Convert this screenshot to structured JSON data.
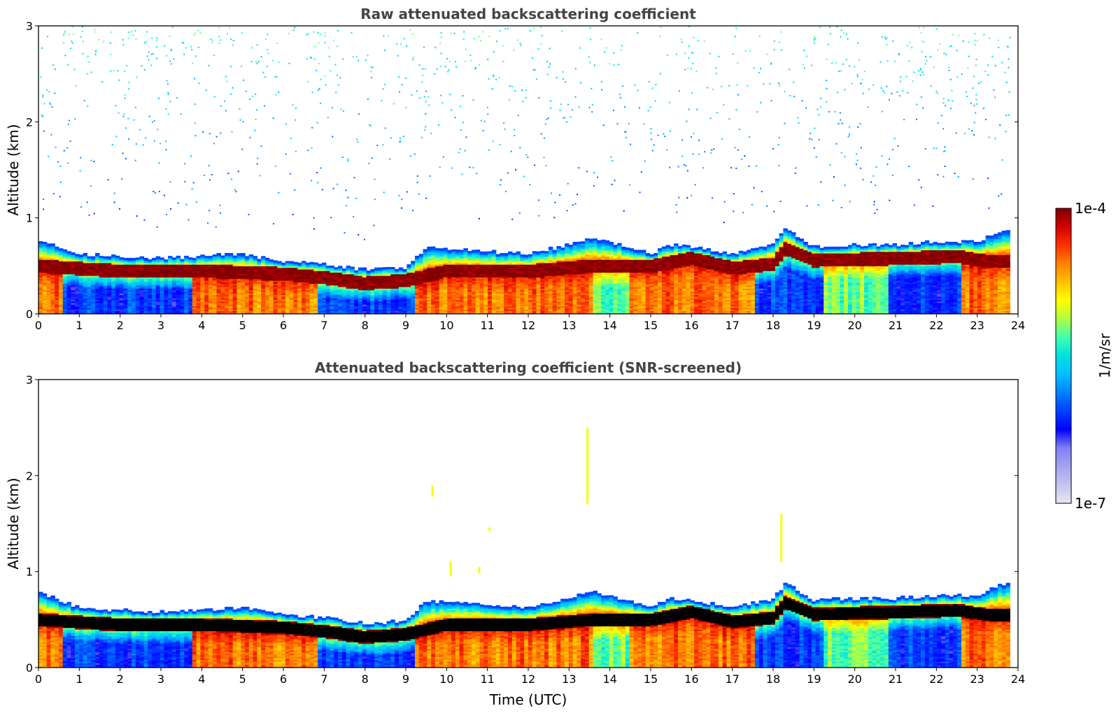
{
  "chart_data": [
    {
      "type": "heatmap",
      "title": "Raw attenuated backscattering coefficient",
      "xlabel": "",
      "ylabel": "Altitude (km)",
      "xlim": [
        0,
        24
      ],
      "ylim": [
        0,
        3
      ],
      "x_ticks": [
        "0",
        "1",
        "2",
        "3",
        "4",
        "5",
        "6",
        "7",
        "8",
        "9",
        "10",
        "11",
        "12",
        "13",
        "14",
        "15",
        "16",
        "17",
        "18",
        "19",
        "20",
        "21",
        "22",
        "23",
        "24"
      ],
      "y_ticks": [
        "0",
        "1",
        "2",
        "3"
      ],
      "layer_top_km": [
        [
          0,
          0.78
        ],
        [
          1,
          0.62
        ],
        [
          2,
          0.6
        ],
        [
          3,
          0.58
        ],
        [
          4,
          0.6
        ],
        [
          5,
          0.62
        ],
        [
          6,
          0.55
        ],
        [
          7,
          0.52
        ],
        [
          8,
          0.46
        ],
        [
          9,
          0.48
        ],
        [
          9.5,
          0.7
        ],
        [
          10,
          0.68
        ],
        [
          11,
          0.65
        ],
        [
          12,
          0.62
        ],
        [
          13,
          0.72
        ],
        [
          13.5,
          0.8
        ],
        [
          14,
          0.75
        ],
        [
          15,
          0.62
        ],
        [
          15.5,
          0.72
        ],
        [
          16,
          0.7
        ],
        [
          17,
          0.62
        ],
        [
          18,
          0.72
        ],
        [
          18.3,
          0.88
        ],
        [
          19,
          0.7
        ],
        [
          20,
          0.72
        ],
        [
          21,
          0.72
        ],
        [
          22,
          0.75
        ],
        [
          23,
          0.75
        ],
        [
          23.8,
          0.9
        ]
      ],
      "max_band_center_km": [
        [
          0,
          0.5
        ],
        [
          2,
          0.45
        ],
        [
          4,
          0.45
        ],
        [
          6,
          0.42
        ],
        [
          7,
          0.38
        ],
        [
          8,
          0.32
        ],
        [
          9,
          0.35
        ],
        [
          10,
          0.45
        ],
        [
          12,
          0.45
        ],
        [
          13.5,
          0.5
        ],
        [
          15,
          0.5
        ],
        [
          16,
          0.58
        ],
        [
          17,
          0.48
        ],
        [
          18,
          0.52
        ],
        [
          18.3,
          0.68
        ],
        [
          19,
          0.56
        ],
        [
          21,
          0.58
        ],
        [
          22.5,
          0.6
        ],
        [
          23.3,
          0.55
        ]
      ],
      "near_surface_signal": [
        {
          "from": 0,
          "to": 0.6,
          "level": "high"
        },
        {
          "from": 0.6,
          "to": 3.8,
          "level": "low"
        },
        {
          "from": 3.8,
          "to": 6.8,
          "level": "high"
        },
        {
          "from": 6.8,
          "to": 9.2,
          "level": "low"
        },
        {
          "from": 9.2,
          "to": 13.6,
          "level": "high"
        },
        {
          "from": 13.6,
          "to": 14.5,
          "level": "medium"
        },
        {
          "from": 14.5,
          "to": 17.6,
          "level": "high"
        },
        {
          "from": 17.6,
          "to": 19.2,
          "level": "low"
        },
        {
          "from": 19.2,
          "to": 20.8,
          "level": "medium"
        },
        {
          "from": 20.8,
          "to": 22.6,
          "level": "low"
        },
        {
          "from": 22.6,
          "to": 23.8,
          "level": "high"
        }
      ],
      "noise_above_layer": true,
      "data_end_hour": 23.8
    },
    {
      "type": "heatmap",
      "title": "Attenuated backscattering coefficient (SNR-screened)",
      "xlabel": "Time (UTC)",
      "ylabel": "Altitude (km)",
      "xlim": [
        0,
        24
      ],
      "ylim": [
        0,
        3
      ],
      "x_ticks": [
        "0",
        "1",
        "2",
        "3",
        "4",
        "5",
        "6",
        "7",
        "8",
        "9",
        "10",
        "11",
        "12",
        "13",
        "14",
        "15",
        "16",
        "17",
        "18",
        "19",
        "20",
        "21",
        "22",
        "23",
        "24"
      ],
      "y_ticks": [
        "0",
        "1",
        "2",
        "3"
      ],
      "noise_above_layer": false,
      "saturated_color": "#000000",
      "isolated_returns": [
        {
          "t": 9.65,
          "z_min": 1.78,
          "z_max": 1.9
        },
        {
          "t": 10.1,
          "z_min": 0.95,
          "z_max": 1.1
        },
        {
          "t": 10.8,
          "z_min": 0.98,
          "z_max": 1.05
        },
        {
          "t": 11.05,
          "z_min": 1.42,
          "z_max": 1.46
        },
        {
          "t": 13.45,
          "z_min": 1.7,
          "z_max": 2.5
        },
        {
          "t": 18.2,
          "z_min": 1.1,
          "z_max": 1.6
        }
      ]
    }
  ],
  "colorbar": {
    "max_label": "1e-4",
    "min_label": "1e-7",
    "units": "1/m/sr",
    "colors": [
      "#e6e6f5",
      "#c4c4ee",
      "#a3a3ef",
      "#7f7ff5",
      "#0000ff",
      "#0040ff",
      "#0080ff",
      "#00c0ff",
      "#00e0e0",
      "#40ffb0",
      "#b0ff40",
      "#ffff00",
      "#ffc000",
      "#ff8000",
      "#ff3000",
      "#d00000",
      "#800000"
    ]
  }
}
